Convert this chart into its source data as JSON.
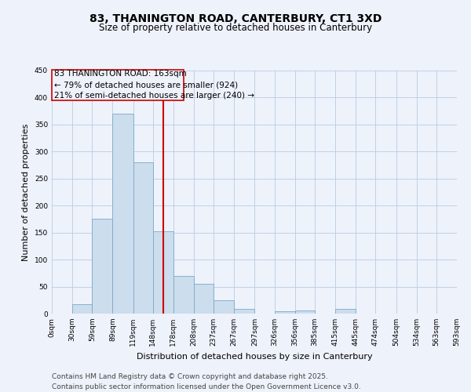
{
  "title": "83, THANINGTON ROAD, CANTERBURY, CT1 3XD",
  "subtitle": "Size of property relative to detached houses in Canterbury",
  "xlabel": "Distribution of detached houses by size in Canterbury",
  "ylabel": "Number of detached properties",
  "bar_color": "#ccdded",
  "bar_edge_color": "#7aaac8",
  "background_color": "#eef2fb",
  "grid_color": "#b8cce0",
  "annotation_box_color": "#cc0000",
  "vline_color": "#cc0000",
  "vline_x": 163,
  "bin_edges": [
    0,
    30,
    59,
    89,
    119,
    148,
    178,
    208,
    237,
    267,
    297,
    326,
    356,
    385,
    415,
    445,
    474,
    504,
    534,
    563,
    593
  ],
  "bin_labels": [
    "0sqm",
    "30sqm",
    "59sqm",
    "89sqm",
    "119sqm",
    "148sqm",
    "178sqm",
    "208sqm",
    "237sqm",
    "267sqm",
    "297sqm",
    "326sqm",
    "356sqm",
    "385sqm",
    "415sqm",
    "445sqm",
    "474sqm",
    "504sqm",
    "534sqm",
    "563sqm",
    "593sqm"
  ],
  "bar_heights": [
    0,
    18,
    175,
    370,
    280,
    152,
    70,
    55,
    24,
    8,
    0,
    5,
    6,
    0,
    8,
    0,
    0,
    0,
    0,
    0
  ],
  "ylim": [
    0,
    450
  ],
  "yticks": [
    0,
    50,
    100,
    150,
    200,
    250,
    300,
    350,
    400,
    450
  ],
  "annotation_text": "83 THANINGTON ROAD: 163sqm\n← 79% of detached houses are smaller (924)\n21% of semi-detached houses are larger (240) →",
  "footer_line1": "Contains HM Land Registry data © Crown copyright and database right 2025.",
  "footer_line2": "Contains public sector information licensed under the Open Government Licence v3.0.",
  "title_fontsize": 10,
  "subtitle_fontsize": 8.5,
  "axis_label_fontsize": 8,
  "tick_fontsize": 6.5,
  "annotation_fontsize": 7.5,
  "footer_fontsize": 6.5
}
